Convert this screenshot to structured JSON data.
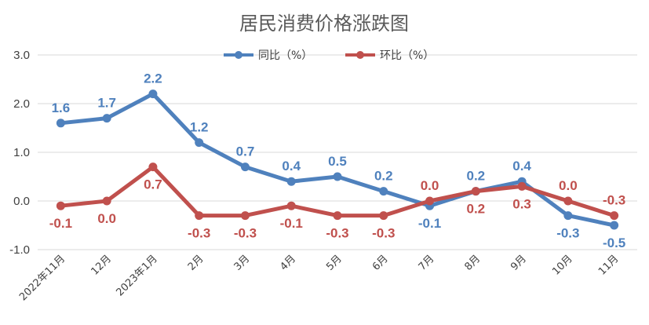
{
  "chart_data": {
    "type": "line",
    "title": "居民消费价格涨跌图",
    "categories": [
      "2022年11月",
      "12月",
      "2023年1月",
      "2月",
      "3月",
      "4月",
      "5月",
      "6月",
      "7月",
      "8月",
      "9月",
      "10月",
      "11月"
    ],
    "series": [
      {
        "name": "同比（%）",
        "color": "#4f81bd",
        "values": [
          1.6,
          1.7,
          2.2,
          1.2,
          0.7,
          0.4,
          0.5,
          0.2,
          -0.1,
          0.2,
          0.4,
          -0.3,
          -0.5
        ],
        "labels": [
          "1.6",
          "1.7",
          "2.2",
          "1.2",
          "0.7",
          "0.4",
          "0.5",
          "0.2",
          "-0.1",
          "0.2",
          "0.4",
          "-0.3",
          "-0.5"
        ]
      },
      {
        "name": "环比（%）",
        "color": "#c0504d",
        "values": [
          -0.1,
          0.0,
          0.7,
          -0.3,
          -0.3,
          -0.1,
          -0.3,
          -0.3,
          0.0,
          0.2,
          0.3,
          0.0,
          -0.3
        ],
        "labels": [
          "-0.1",
          "0.0",
          "0.7",
          "-0.3",
          "-0.3",
          "-0.1",
          "-0.3",
          "-0.3",
          "0.0",
          "0.2",
          "0.3",
          "0.0",
          "-0.3"
        ]
      }
    ],
    "ylim": [
      -1.0,
      3.0
    ],
    "yticks": [
      "-1.0",
      "0.0",
      "1.0",
      "2.0",
      "3.0"
    ],
    "ytick_values": [
      -1.0,
      0.0,
      1.0,
      2.0,
      3.0
    ],
    "grid": true,
    "legend_position": "top-center"
  }
}
